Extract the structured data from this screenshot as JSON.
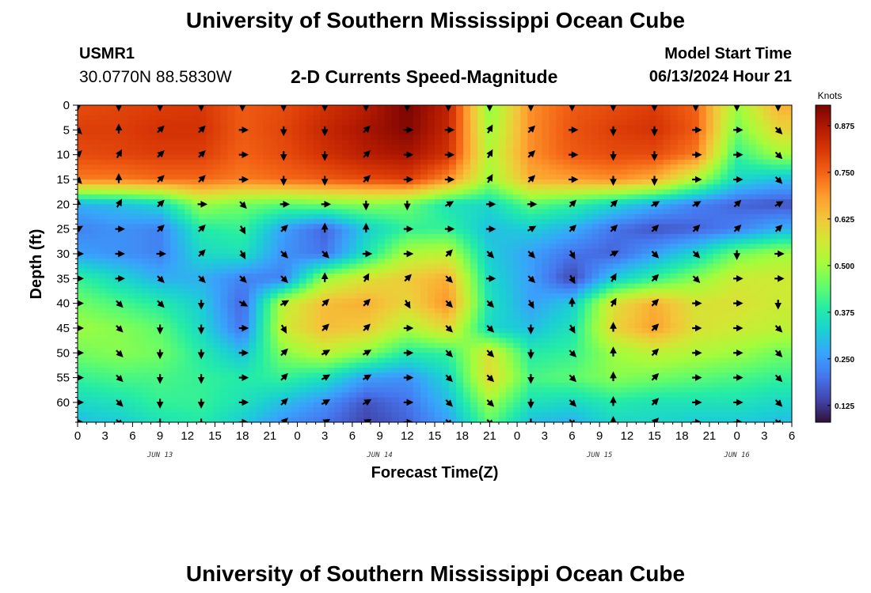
{
  "header": {
    "title": "University of Southern Mississippi Ocean Cube",
    "station_id": "USMR1",
    "coords": "30.0770N  88.5830W",
    "subtitle": "2-D Currents Speed-Magnitude",
    "model_start_label": "Model Start Time",
    "model_start_value": "06/13/2024 Hour 21"
  },
  "footer": {
    "title": "University of Southern Mississippi Ocean Cube"
  },
  "chart_data": {
    "type": "heatmap",
    "title": "2-D Currents Speed-Magnitude",
    "xlabel": "Forecast Time(Z)",
    "ylabel": "Depth (ft)",
    "colorbar_label": "Knots",
    "x_tick_labels": [
      "0",
      "3",
      "6",
      "9",
      "12",
      "15",
      "18",
      "21",
      "0",
      "3",
      "6",
      "9",
      "12",
      "15",
      "18",
      "21",
      "0",
      "3",
      "6",
      "9",
      "12",
      "15",
      "18",
      "21",
      "0",
      "3",
      "6"
    ],
    "date_labels": [
      {
        "label": "JUN 13",
        "hour": 9
      },
      {
        "label": "JUN 14",
        "hour": 33
      },
      {
        "label": "JUN 15",
        "hour": 57
      },
      {
        "label": "JUN 16",
        "hour": 72
      }
    ],
    "x_range_hours": [
      0,
      78
    ],
    "y_ticks": [
      0,
      5,
      10,
      15,
      20,
      25,
      30,
      35,
      40,
      45,
      50,
      55,
      60
    ],
    "y_range_ft": [
      0,
      64
    ],
    "z_range_knots": [
      0.08,
      0.93
    ],
    "colorbar_ticks": [
      0.125,
      0.25,
      0.375,
      0.5,
      0.625,
      0.75,
      0.875
    ],
    "grid": false,
    "colors": [
      "#30123b",
      "#4145ab",
      "#4675ed",
      "#39a2fc",
      "#1bcfd4",
      "#24eca6",
      "#61fc6c",
      "#a4fc3b",
      "#d1e834",
      "#f3c63a",
      "#fe9b2d",
      "#f36315",
      "#d93806",
      "#b11901",
      "#7a0402"
    ],
    "x_hours": [
      0,
      4.5,
      9,
      13.5,
      18,
      22.5,
      27,
      31.5,
      36,
      40.5,
      45,
      49.5,
      54,
      58.5,
      63,
      67.5,
      72,
      76.5
    ],
    "depths_ft": [
      0,
      5,
      10,
      15,
      20,
      25,
      30,
      35,
      40,
      45,
      50,
      55,
      60,
      64
    ],
    "speed_knots": [
      [
        0.78,
        0.79,
        0.8,
        0.81,
        0.76,
        0.78,
        0.82,
        0.86,
        0.93,
        0.85,
        0.48,
        0.7,
        0.76,
        0.78,
        0.8,
        0.75,
        0.5,
        0.66
      ],
      [
        0.8,
        0.8,
        0.82,
        0.82,
        0.76,
        0.79,
        0.84,
        0.88,
        0.92,
        0.84,
        0.5,
        0.7,
        0.77,
        0.8,
        0.82,
        0.76,
        0.46,
        0.6
      ],
      [
        0.78,
        0.79,
        0.8,
        0.8,
        0.75,
        0.78,
        0.82,
        0.86,
        0.88,
        0.82,
        0.52,
        0.7,
        0.76,
        0.78,
        0.78,
        0.72,
        0.4,
        0.5
      ],
      [
        0.72,
        0.72,
        0.74,
        0.74,
        0.72,
        0.74,
        0.76,
        0.78,
        0.8,
        0.7,
        0.5,
        0.66,
        0.68,
        0.7,
        0.66,
        0.52,
        0.34,
        0.3
      ],
      [
        0.28,
        0.3,
        0.34,
        0.5,
        0.46,
        0.44,
        0.46,
        0.48,
        0.46,
        0.36,
        0.34,
        0.44,
        0.4,
        0.34,
        0.28,
        0.22,
        0.18,
        0.16
      ],
      [
        0.22,
        0.24,
        0.22,
        0.38,
        0.4,
        0.26,
        0.18,
        0.32,
        0.4,
        0.4,
        0.3,
        0.32,
        0.28,
        0.2,
        0.16,
        0.18,
        0.22,
        0.28
      ],
      [
        0.26,
        0.24,
        0.22,
        0.34,
        0.36,
        0.24,
        0.2,
        0.36,
        0.52,
        0.54,
        0.32,
        0.26,
        0.2,
        0.18,
        0.26,
        0.34,
        0.46,
        0.5
      ],
      [
        0.4,
        0.34,
        0.28,
        0.28,
        0.22,
        0.22,
        0.5,
        0.58,
        0.62,
        0.66,
        0.34,
        0.26,
        0.14,
        0.32,
        0.4,
        0.48,
        0.56,
        0.56
      ],
      [
        0.46,
        0.42,
        0.38,
        0.32,
        0.18,
        0.54,
        0.64,
        0.66,
        0.6,
        0.7,
        0.36,
        0.26,
        0.32,
        0.58,
        0.66,
        0.58,
        0.58,
        0.56
      ],
      [
        0.5,
        0.48,
        0.44,
        0.34,
        0.2,
        0.56,
        0.64,
        0.62,
        0.52,
        0.6,
        0.34,
        0.3,
        0.36,
        0.6,
        0.68,
        0.58,
        0.56,
        0.54
      ],
      [
        0.46,
        0.48,
        0.46,
        0.38,
        0.3,
        0.48,
        0.54,
        0.48,
        0.38,
        0.4,
        0.58,
        0.38,
        0.4,
        0.5,
        0.54,
        0.52,
        0.5,
        0.46
      ],
      [
        0.4,
        0.42,
        0.42,
        0.4,
        0.38,
        0.4,
        0.36,
        0.26,
        0.24,
        0.34,
        0.6,
        0.42,
        0.44,
        0.48,
        0.46,
        0.44,
        0.42,
        0.4
      ],
      [
        0.34,
        0.36,
        0.4,
        0.4,
        0.36,
        0.3,
        0.24,
        0.16,
        0.2,
        0.3,
        0.5,
        0.36,
        0.34,
        0.38,
        0.36,
        0.36,
        0.36,
        0.34
      ],
      [
        0.3,
        0.32,
        0.36,
        0.38,
        0.32,
        0.24,
        0.2,
        0.14,
        0.18,
        0.26,
        0.44,
        0.3,
        0.28,
        0.34,
        0.34,
        0.32,
        0.32,
        0.3
      ]
    ],
    "direction_deg": [
      [
        180,
        180,
        180,
        180,
        180,
        180,
        180,
        180,
        180,
        180,
        180,
        180,
        180,
        180,
        180,
        180,
        180,
        180
      ],
      [
        135,
        0,
        45,
        45,
        90,
        180,
        180,
        45,
        90,
        90,
        30,
        45,
        90,
        180,
        180,
        90,
        90,
        135
      ],
      [
        45,
        30,
        45,
        45,
        90,
        180,
        180,
        45,
        90,
        90,
        30,
        45,
        90,
        180,
        180,
        90,
        90,
        135
      ],
      [
        135,
        0,
        45,
        45,
        90,
        180,
        180,
        45,
        90,
        90,
        30,
        45,
        90,
        180,
        180,
        90,
        90,
        135
      ],
      [
        0,
        30,
        45,
        90,
        135,
        90,
        90,
        180,
        180,
        60,
        90,
        90,
        45,
        45,
        60,
        60,
        45,
        60
      ],
      [
        60,
        90,
        45,
        45,
        150,
        45,
        0,
        0,
        90,
        90,
        90,
        60,
        45,
        45,
        45,
        45,
        45,
        45
      ],
      [
        90,
        90,
        90,
        45,
        150,
        135,
        135,
        90,
        90,
        45,
        135,
        135,
        150,
        60,
        135,
        135,
        180,
        90
      ],
      [
        90,
        90,
        135,
        135,
        135,
        135,
        0,
        30,
        45,
        135,
        90,
        135,
        150,
        30,
        45,
        135,
        90,
        90
      ],
      [
        90,
        135,
        135,
        180,
        120,
        60,
        45,
        45,
        150,
        135,
        135,
        150,
        0,
        30,
        45,
        90,
        90,
        180
      ],
      [
        90,
        135,
        180,
        180,
        90,
        150,
        45,
        45,
        90,
        135,
        135,
        180,
        150,
        0,
        45,
        90,
        90,
        135
      ],
      [
        90,
        135,
        180,
        180,
        90,
        45,
        60,
        60,
        90,
        135,
        135,
        180,
        135,
        0,
        45,
        90,
        90,
        135
      ],
      [
        90,
        135,
        180,
        180,
        90,
        45,
        60,
        60,
        90,
        135,
        135,
        180,
        135,
        0,
        45,
        90,
        90,
        135
      ],
      [
        90,
        135,
        180,
        180,
        90,
        45,
        60,
        60,
        90,
        135,
        135,
        180,
        135,
        0,
        45,
        90,
        90,
        135
      ],
      [
        90,
        135,
        180,
        180,
        90,
        45,
        60,
        60,
        90,
        135,
        135,
        180,
        135,
        0,
        45,
        90,
        90,
        135
      ]
    ]
  }
}
